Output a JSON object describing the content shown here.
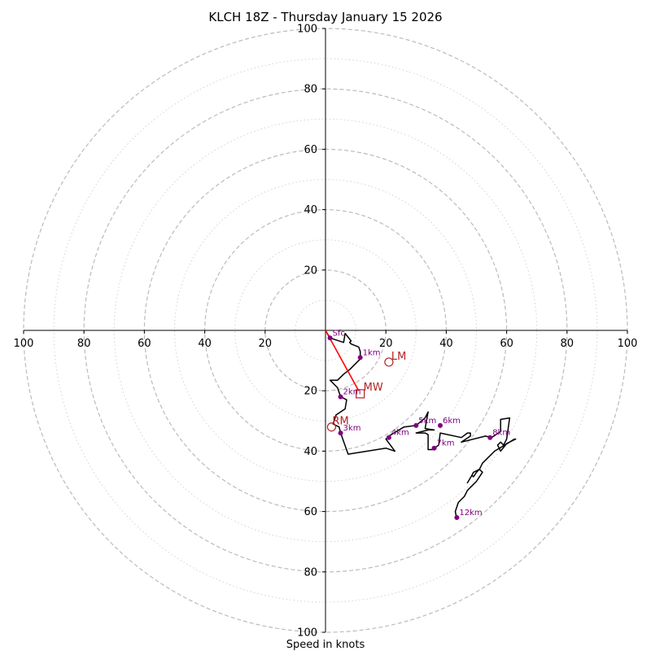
{
  "chart_data": {
    "type": "scatter",
    "title": "KLCH 18Z - Thursday January 15 2026",
    "xlabel": "Speed in knots",
    "ylabel": "",
    "xlim": [
      -100,
      100
    ],
    "ylim": [
      -100,
      100
    ],
    "x_tick_labels": [
      "100",
      "80",
      "60",
      "40",
      "20",
      "20",
      "40",
      "60",
      "80",
      "100"
    ],
    "x_tick_values": [
      -100,
      -80,
      -60,
      -40,
      -20,
      20,
      40,
      60,
      80,
      100
    ],
    "y_tick_labels": [
      "100",
      "80",
      "60",
      "40",
      "20",
      "20",
      "40",
      "60",
      "80",
      "100"
    ],
    "y_tick_values": [
      100,
      80,
      60,
      40,
      20,
      -20,
      -40,
      -60,
      -80,
      -100
    ],
    "rings_major": [
      20,
      40,
      60,
      80,
      100
    ],
    "rings_minor": [
      10,
      30,
      50,
      70,
      90
    ],
    "hodograph_line": [
      [
        0,
        0
      ],
      [
        1.5,
        -2.5
      ],
      [
        6,
        -4
      ],
      [
        6.5,
        -1
      ],
      [
        8.5,
        -3.5
      ],
      [
        8,
        -4
      ],
      [
        8.5,
        -4.5
      ],
      [
        11,
        -5.5
      ],
      [
        11.5,
        -7
      ],
      [
        11.5,
        -9.5
      ],
      [
        8,
        -13
      ],
      [
        6,
        -14.5
      ],
      [
        4,
        -16.5
      ],
      [
        1.5,
        -16.5
      ],
      [
        4,
        -19
      ],
      [
        5,
        -22
      ],
      [
        7,
        -23
      ],
      [
        6.5,
        -26
      ],
      [
        3.5,
        -28
      ],
      [
        2.5,
        -31
      ],
      [
        4.5,
        -32
      ],
      [
        5,
        -34
      ],
      [
        7.5,
        -41
      ],
      [
        20,
        -39
      ],
      [
        23,
        -40
      ],
      [
        20,
        -36
      ],
      [
        21,
        -35
      ],
      [
        26,
        -32
      ],
      [
        30,
        -31.5
      ],
      [
        33,
        -29
      ],
      [
        34,
        -27
      ],
      [
        33,
        -32.5
      ],
      [
        36,
        -33
      ],
      [
        34,
        -33
      ],
      [
        30,
        -34
      ],
      [
        33,
        -34
      ],
      [
        34,
        -34.5
      ],
      [
        34,
        -39.5
      ],
      [
        35.5,
        -39.5
      ],
      [
        36,
        -39
      ],
      [
        37.5,
        -38
      ],
      [
        38,
        -34
      ],
      [
        45,
        -35.5
      ],
      [
        47,
        -34
      ],
      [
        48,
        -34
      ],
      [
        48,
        -35
      ],
      [
        45,
        -37
      ],
      [
        53,
        -35
      ],
      [
        55,
        -35.5
      ],
      [
        58,
        -33.5
      ],
      [
        58,
        -29.5
      ],
      [
        61,
        -29
      ],
      [
        60,
        -36
      ],
      [
        59,
        -38
      ],
      [
        58,
        -37
      ],
      [
        57,
        -38
      ],
      [
        58,
        -40
      ],
      [
        60,
        -37.5
      ],
      [
        63,
        -36
      ],
      [
        62.5,
        -36
      ],
      [
        61,
        -37
      ],
      [
        56,
        -40
      ],
      [
        54,
        -42
      ],
      [
        52,
        -44
      ],
      [
        51,
        -46
      ],
      [
        50,
        -47
      ],
      [
        49,
        -48.5
      ],
      [
        48.5,
        -48
      ],
      [
        47,
        -50.5
      ],
      [
        48.5,
        -48
      ],
      [
        49,
        -47
      ],
      [
        51,
        -46
      ],
      [
        52,
        -47
      ],
      [
        50,
        -50
      ],
      [
        49,
        -51
      ],
      [
        47,
        -53
      ],
      [
        46,
        -55
      ],
      [
        44,
        -57
      ],
      [
        43,
        -60
      ],
      [
        43.5,
        -62.5
      ]
    ],
    "height_points": [
      {
        "label": "Sfc",
        "u": 1.5,
        "v": -2.5
      },
      {
        "label": "1km",
        "u": 11.5,
        "v": -9
      },
      {
        "label": "2km",
        "u": 5,
        "v": -22
      },
      {
        "label": "3km",
        "u": 5,
        "v": -34
      },
      {
        "label": "4km",
        "u": 21,
        "v": -35.5
      },
      {
        "label": "5km",
        "u": 30,
        "v": -31.5
      },
      {
        "label": "6km",
        "u": 38,
        "v": -31.5
      },
      {
        "label": "7km",
        "u": 36,
        "v": -39
      },
      {
        "label": "8km",
        "u": 54.5,
        "v": -35.5
      },
      {
        "label": "12km",
        "u": 43.5,
        "v": -62
      }
    ],
    "storm_motion": {
      "mw": {
        "label": "MW",
        "u": 11.5,
        "v": -21
      },
      "lm": {
        "label": "LM",
        "u": 21,
        "v": -10.5
      },
      "rm": {
        "label": "RM",
        "u": 2,
        "v": -32
      },
      "shear_vector": {
        "u0": 0,
        "v0": 0,
        "u1": 11,
        "v1": -20
      }
    },
    "colors": {
      "hodograph": "#000000",
      "height_point": "#800080",
      "height_label": "#800080",
      "storm_marker": "#b22222",
      "shear_line": "#ff0000",
      "ring_major": "#bbbbbb",
      "ring_minor": "#d3d3d3",
      "axis": "#000000"
    }
  }
}
